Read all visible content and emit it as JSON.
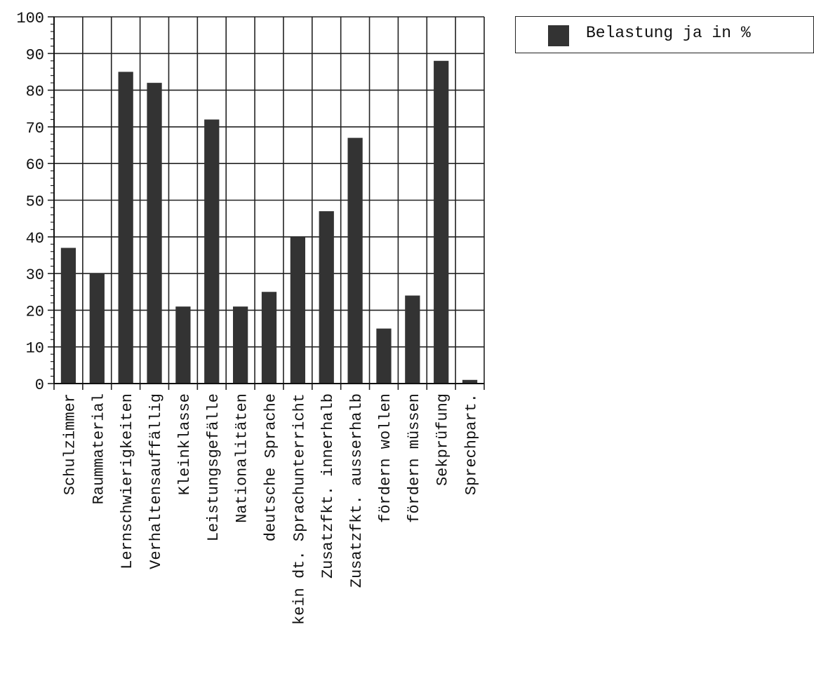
{
  "chart_data": {
    "type": "bar",
    "categories": [
      "Schulzimmer",
      "Raummaterial",
      "Lernschwierigkeiten",
      "Verhaltensauffällig",
      "Kleinklasse",
      "Leistungsgefälle",
      "Nationalitäten",
      "deutsche Sprache",
      "kein dt. Sprachunterricht",
      "Zusatzfkt. innerhalb",
      "Zusatzfkt. ausserhalb",
      "fördern wollen",
      "fördern müssen",
      "Sekprüfung",
      "Sprechpart."
    ],
    "series": [
      {
        "name": "Belastung ja in %",
        "values": [
          37,
          30,
          85,
          82,
          21,
          72,
          21,
          25,
          40,
          47,
          67,
          15,
          24,
          88,
          1
        ]
      }
    ],
    "ylim": [
      0,
      100
    ],
    "yticks": [
      "0",
      "10",
      "20",
      "30",
      "40",
      "50",
      "60",
      "70",
      "80",
      "90",
      "100"
    ],
    "grid": true,
    "legend_position": "top-right",
    "bar_color": "#333333"
  }
}
